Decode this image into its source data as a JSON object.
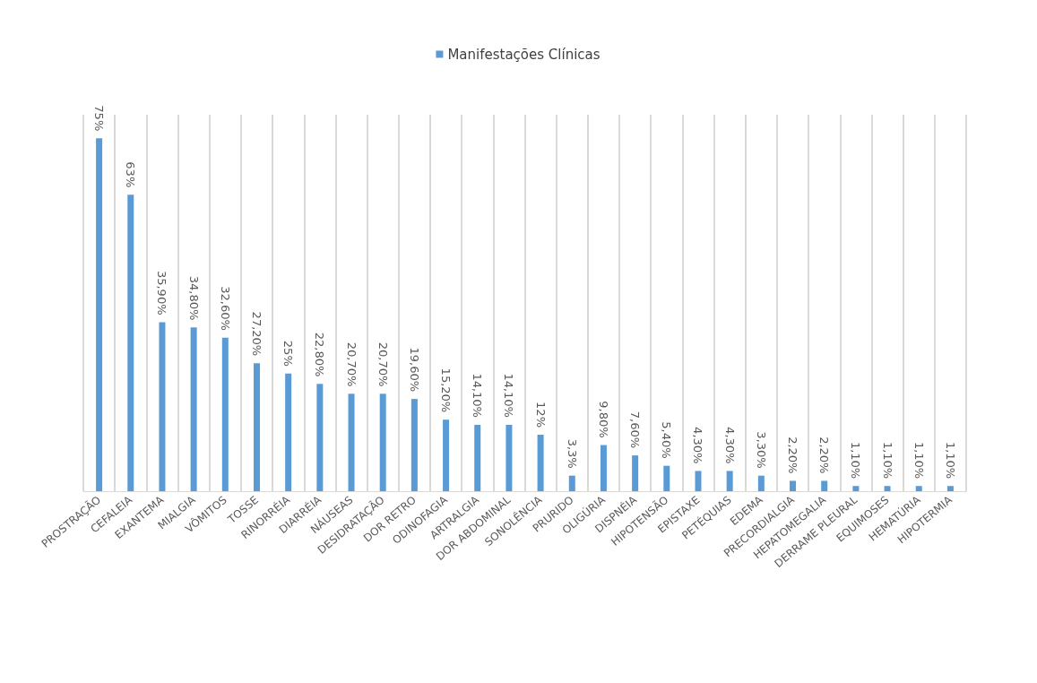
{
  "chart_data": {
    "type": "bar",
    "categories": [
      "PROSTRAÇÃO",
      "CEFALEIA",
      "EXANTEMA",
      "MIALGIA",
      "VÔMITOS",
      "TOSSE",
      "RINORRÉIA",
      "DIARRÉIA",
      "NÁUSEAS",
      "DESIDRATAÇÃO",
      "DOR RETRO",
      "ODINOFAGIA",
      "ARTRALGIA",
      "DOR ABDOMINAL",
      "SONOLÊNCIA",
      "PRURIDO",
      "OLIGÚRIA",
      "DISPNÉIA",
      "HIPOTENSÃO",
      "EPISTAXE",
      "PETÉQUIAS",
      "EDEMA",
      "PRECORDIALGIA",
      "HEPATOMEGALIA",
      "DERRAME PLEURAL",
      "EQUIMOSES",
      "HEMATÚRIA",
      "HIPOTERMIA"
    ],
    "series": [
      {
        "name": "Manifestações Clínicas",
        "color": "#5b9bd5",
        "values": [
          75,
          63,
          35.9,
          34.8,
          32.6,
          27.2,
          25,
          22.8,
          20.7,
          20.7,
          19.6,
          15.2,
          14.1,
          14.1,
          12,
          3.3,
          9.8,
          7.6,
          5.4,
          4.3,
          4.3,
          3.3,
          2.2,
          2.2,
          1.1,
          1.1,
          1.1,
          1.1
        ],
        "value_labels": [
          "75%",
          "63%",
          "35,90%",
          "34,80%",
          "32,60%",
          "27,20%",
          "25%",
          "22,80%",
          "20,70%",
          "20,70%",
          "19,60%",
          "15,20%",
          "14,10%",
          "14,10%",
          "12%",
          "3,3%",
          "9,80%",
          "7,60%",
          "5,40%",
          "4,30%",
          "4,30%",
          "3,30%",
          "2,20%",
          "2,20%",
          "1,10%",
          "1,10%",
          "1,10%",
          "1,10%"
        ]
      }
    ],
    "grid": "x",
    "legend": "top"
  }
}
